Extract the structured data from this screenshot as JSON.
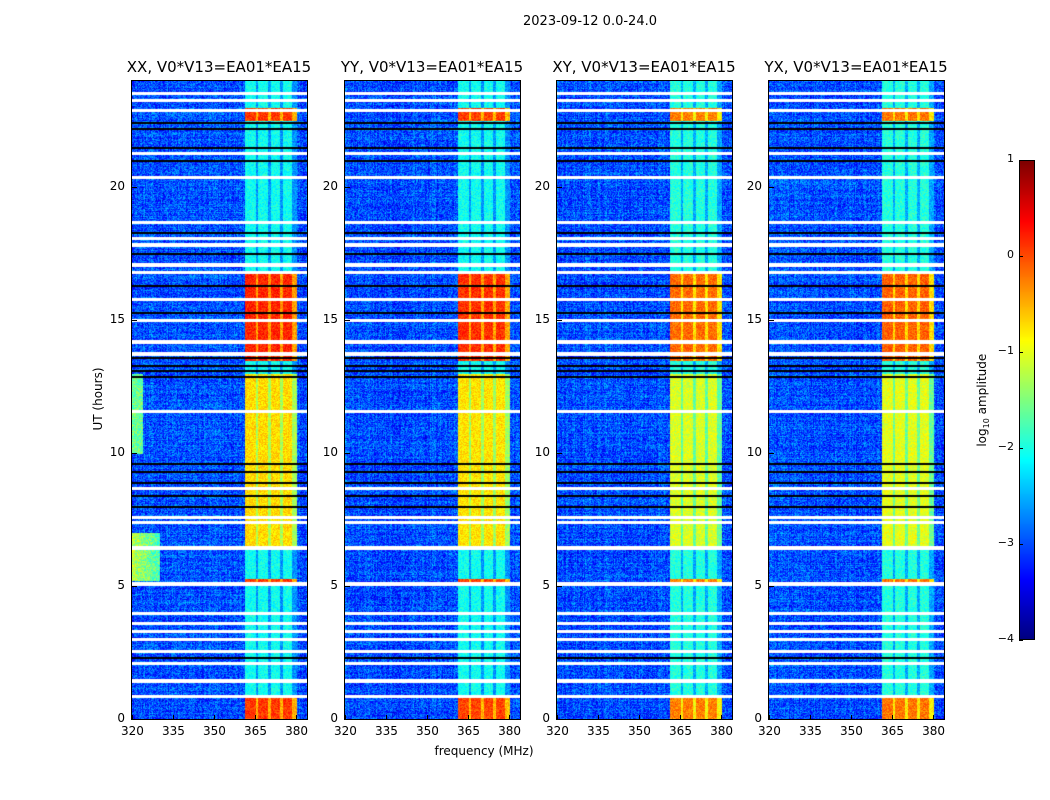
{
  "chart_data": {
    "type": "heatmap",
    "title": "2023-09-12 0.0-24.0",
    "xlabel": "frequency (MHz)",
    "ylabel": "UT (hours)",
    "xlim": [
      320,
      384
    ],
    "ylim": [
      0,
      24
    ],
    "xticks": [
      "320",
      "335",
      "350",
      "365",
      "380"
    ],
    "xtick_values": [
      320,
      335,
      350,
      365,
      380
    ],
    "yticks": [
      "0",
      "5",
      "10",
      "15",
      "20"
    ],
    "ytick_values": [
      0,
      5,
      10,
      15,
      20
    ],
    "panels": [
      {
        "title": "XX, V0*V13=EA01*EA15",
        "band_boost": 0.35,
        "lowfreq_rfi": true
      },
      {
        "title": "YY, V0*V13=EA01*EA15",
        "band_boost": 0.3,
        "lowfreq_rfi": false
      },
      {
        "title": "XY, V0*V13=EA01*EA15",
        "band_boost": 0.0,
        "lowfreq_rfi": false
      },
      {
        "title": "YX, V0*V13=EA01*EA15",
        "band_boost": 0.05,
        "lowfreq_rfi": false
      }
    ],
    "background_level": -3.0,
    "rfi_band_mhz": [
      361,
      380
    ],
    "rfi_subbands_mhz": [
      [
        361,
        365
      ],
      [
        366,
        369.5
      ],
      [
        370.5,
        374
      ],
      [
        375,
        378.5
      ]
    ],
    "band_episodes": [
      {
        "start": 0.0,
        "end": 0.9,
        "level": -0.5
      },
      {
        "start": 5.05,
        "end": 5.3,
        "level": -0.5
      },
      {
        "start": 6.5,
        "end": 13.0,
        "level": -1.3
      },
      {
        "start": 13.5,
        "end": 16.8,
        "level": -0.4
      },
      {
        "start": 22.5,
        "end": 23.0,
        "level": -0.5
      }
    ],
    "flagged_rows_hours": [
      0.85,
      1.45,
      2.1,
      2.55,
      3.0,
      3.3,
      3.6,
      4.0,
      5.1,
      6.45,
      7.4,
      7.6,
      8.7,
      11.6,
      13.75,
      14.2,
      15.0,
      15.8,
      16.8,
      17.1,
      17.85,
      18.1,
      18.7,
      20.4,
      21.3,
      22.9,
      23.3,
      23.55
    ],
    "gap_rows_hours": [
      2.3,
      8.0,
      8.4,
      8.9,
      9.3,
      9.6,
      12.9,
      13.1,
      13.3,
      13.6,
      15.3,
      16.3,
      17.5,
      18.3,
      21.0,
      21.5,
      22.2,
      22.45
    ],
    "colorbar": {
      "label_prefix": "log",
      "label_sub": "10",
      "label_suffix": " amplitude",
      "range": [
        -4,
        1
      ],
      "ticks": [
        "1",
        "0",
        "−1",
        "−2",
        "−3",
        "−4"
      ],
      "tick_values": [
        1,
        0,
        -1,
        -2,
        -3,
        -4
      ],
      "colormap": "jet"
    }
  }
}
